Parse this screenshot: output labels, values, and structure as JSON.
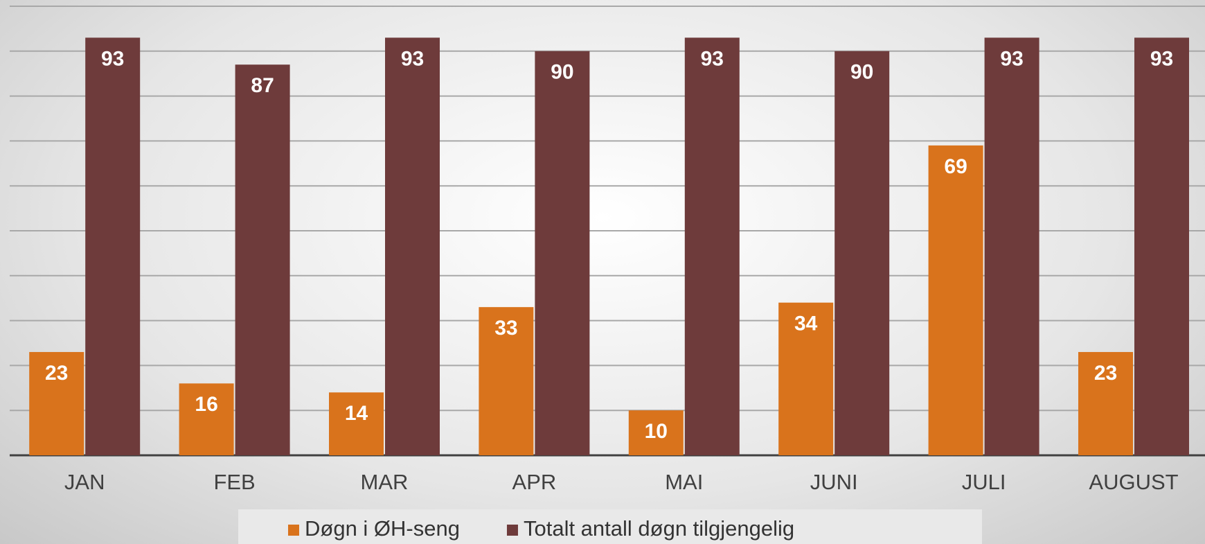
{
  "chart_data": {
    "type": "bar",
    "categories": [
      "JAN",
      "FEB",
      "MAR",
      "APR",
      "MAI",
      "JUNI",
      "JULI",
      "AUGUST"
    ],
    "series": [
      {
        "name": "Døgn i ØH-seng",
        "color": "#d9731c",
        "values": [
          23,
          16,
          14,
          33,
          10,
          34,
          69,
          23
        ]
      },
      {
        "name": "Totalt antall døgn tilgjengelig",
        "color": "#6e3b3b",
        "values": [
          93,
          87,
          93,
          90,
          93,
          90,
          93,
          93
        ]
      }
    ],
    "ylim": [
      0,
      100
    ],
    "yticks": [
      0,
      10,
      20,
      30,
      40,
      50,
      60,
      70,
      80,
      90,
      100
    ],
    "grid": true,
    "legend": "bottom"
  }
}
